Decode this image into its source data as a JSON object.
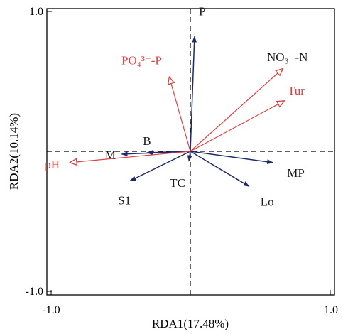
{
  "chart_data": {
    "type": "scatter",
    "subtype": "rda-biplot",
    "xlabel": "RDA1(17.48%)",
    "ylabel": "RDA2(10.14%)",
    "xlim": [
      -1.0,
      1.0
    ],
    "ylim": [
      -1.0,
      1.0
    ],
    "x_tick_labels": [
      "-1.0",
      "1.0"
    ],
    "y_tick_labels": [
      "1.0",
      "-1.0"
    ],
    "reference_lines": "dashed lines at x = 0 and y = 0",
    "colors": {
      "species": "#1f2a6b",
      "environment": "#e04040",
      "axes": "#000000"
    },
    "series": [
      {
        "group": "species",
        "arrowhead": "filled",
        "vectors": [
          {
            "label": "P",
            "x": 0.03,
            "y": 0.82
          },
          {
            "label": "MP",
            "x": 0.59,
            "y": -0.08
          },
          {
            "label": "Lo",
            "x": 0.42,
            "y": -0.25
          },
          {
            "label": "TC",
            "x": -0.01,
            "y": -0.07
          },
          {
            "label": "S1",
            "x": -0.43,
            "y": -0.21
          },
          {
            "label": "B",
            "x": -0.31,
            "y": -0.01
          },
          {
            "label": "M",
            "x": -0.49,
            "y": -0.02
          }
        ]
      },
      {
        "group": "environment",
        "arrowhead": "open",
        "vectors": [
          {
            "label": "NO₃⁻-N",
            "x": 0.66,
            "y": 0.59
          },
          {
            "label": "Tur",
            "x": 0.67,
            "y": 0.36
          },
          {
            "label": "PO₄³⁻-P",
            "x": -0.15,
            "y": 0.53
          },
          {
            "label": "pH",
            "x": -0.86,
            "y": -0.08
          }
        ]
      }
    ]
  }
}
